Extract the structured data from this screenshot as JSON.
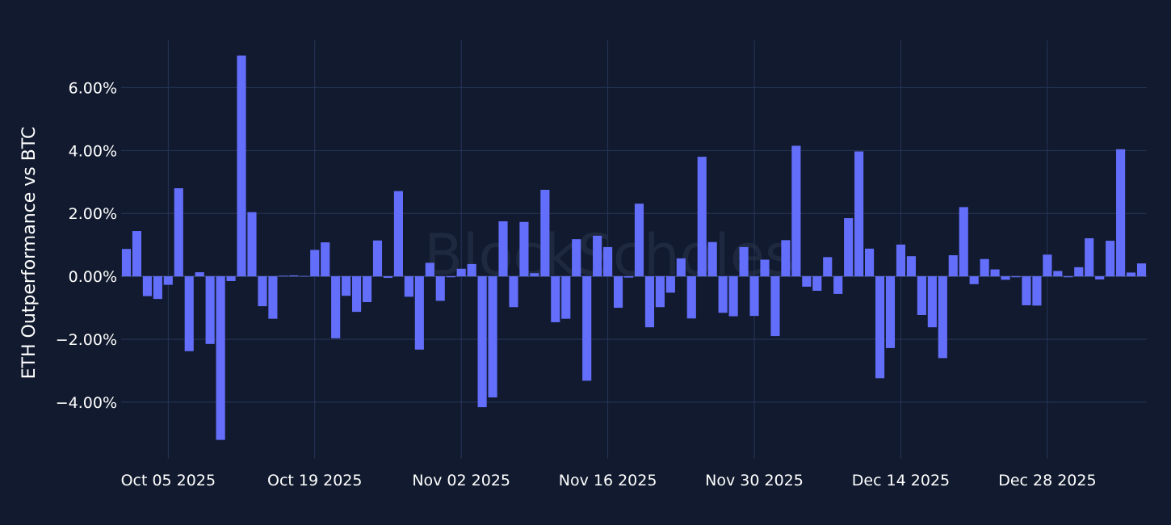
{
  "watermark_text": "BlockScholes",
  "colors": {
    "background": "#111a2e",
    "bar": "#636efa",
    "grid": "#27365a",
    "text": "#ffffff"
  },
  "chart_data": {
    "type": "bar",
    "ylabel": "ETH Outperformance vs BTC",
    "xlabel": "",
    "ylim": [
      -5.8,
      7.5
    ],
    "y_ticks": [
      6,
      4,
      2,
      0,
      -2,
      -4
    ],
    "y_tick_labels": [
      "6.00%",
      "4.00%",
      "2.00%",
      "0.00%",
      "−2.00%",
      "−4.00%"
    ],
    "x_ticks": [
      "2025-10-05",
      "2025-10-19",
      "2025-11-02",
      "2025-11-16",
      "2025-11-30",
      "2025-12-14",
      "2025-12-28"
    ],
    "x_tick_labels": [
      "Oct 05 2025",
      "Oct 19 2025",
      "Nov 02 2025",
      "Nov 16 2025",
      "Nov 30 2025",
      "Dec 14 2025",
      "Dec 28 2025"
    ],
    "x_start": "2025-10-01",
    "values": [
      0.87,
      1.44,
      -0.63,
      -0.72,
      -0.27,
      2.8,
      -2.38,
      0.13,
      -2.15,
      -5.2,
      -0.15,
      7.02,
      2.04,
      -0.95,
      -1.35,
      0.02,
      0.03,
      0.01,
      0.84,
      1.08,
      -1.97,
      -0.62,
      -1.13,
      -0.82,
      1.14,
      -0.05,
      2.71,
      -0.65,
      -2.33,
      0.43,
      -0.78,
      -0.03,
      0.24,
      0.39,
      -4.16,
      -3.85,
      1.75,
      -0.98,
      1.73,
      0.1,
      2.75,
      -1.46,
      -1.35,
      1.18,
      -3.32,
      1.29,
      0.93,
      -1.0,
      -0.04,
      2.31,
      -1.62,
      -0.98,
      -0.52,
      0.57,
      -1.34,
      3.8,
      1.09,
      -1.16,
      -1.27,
      0.93,
      -1.26,
      0.53,
      -1.9,
      1.15,
      4.15,
      -0.33,
      -0.46,
      0.61,
      -0.56,
      1.85,
      3.97,
      0.88,
      -3.24,
      -2.28,
      1.01,
      0.64,
      -1.23,
      -1.62,
      -2.6,
      0.67,
      2.2,
      -0.25,
      0.55,
      0.22,
      -0.11,
      -0.03,
      -0.92,
      -0.93,
      0.69,
      0.17,
      -0.03,
      0.29,
      1.21,
      -0.1,
      1.13,
      4.04,
      0.12,
      0.41
    ]
  }
}
